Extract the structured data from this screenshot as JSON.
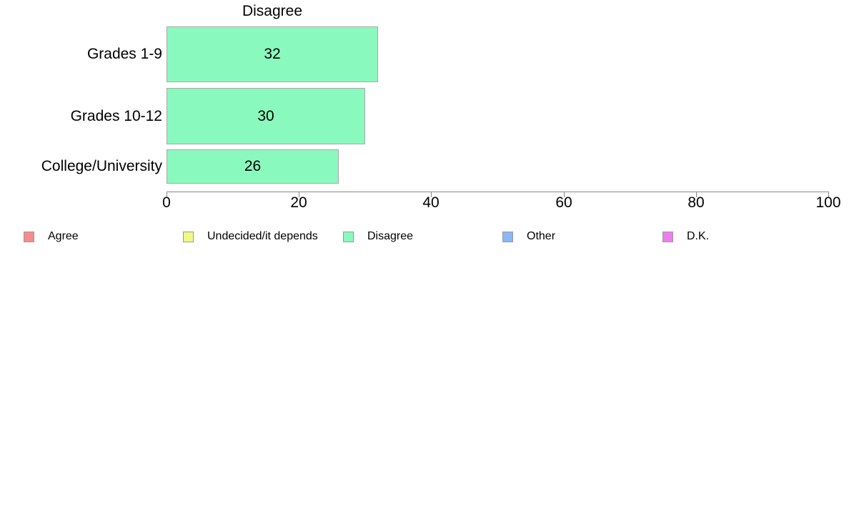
{
  "chart_data": {
    "type": "bar",
    "orientation": "horizontal",
    "title": "Disagree",
    "categories": [
      "Grades 1-9",
      "Grades 10-12",
      "College/University"
    ],
    "values": [
      32,
      30,
      26
    ],
    "value_labels": [
      "32",
      "30",
      "26"
    ],
    "xlabel": "",
    "ylabel": "",
    "xlim": [
      0,
      100
    ],
    "x_ticks": [
      0,
      20,
      40,
      60,
      80,
      100
    ],
    "x_tick_labels": [
      "0",
      "20",
      "40",
      "60",
      "80",
      "100"
    ],
    "grid": false,
    "bar_color": "#8af9bd",
    "bar_border_color": "#a8a8a8",
    "legend_position": "bottom",
    "legend": [
      {
        "label": "Agree",
        "color": "#f78c8c"
      },
      {
        "label": "Undecided/it depends",
        "color": "#eefa87"
      },
      {
        "label": "Disagree",
        "color": "#8af9bd"
      },
      {
        "label": "Other",
        "color": "#8cb6fa"
      },
      {
        "label": "D.K.",
        "color": "#f07df0"
      }
    ]
  }
}
